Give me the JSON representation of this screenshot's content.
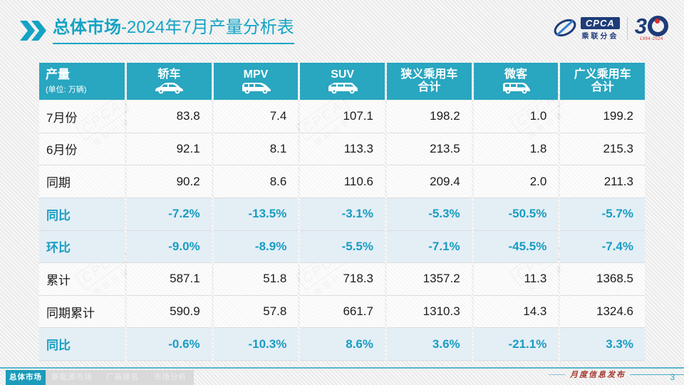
{
  "title": {
    "prefix": "总体市场",
    "suffix": "-2024年7月产量分析表"
  },
  "logos": {
    "cpca_acronym": "CPCA",
    "cpca_name": "乘联分会",
    "anniversary_number_left": "3",
    "anniversary_years": "1994-2024"
  },
  "watermark": {
    "line1": "CPCA",
    "line2": "乘联分会"
  },
  "table": {
    "first_header": {
      "title": "产量",
      "subtitle": "(单位: 万辆)"
    },
    "columns": [
      {
        "label": "轿车",
        "icon": "sedan-icon"
      },
      {
        "label": "MPV",
        "icon": "mpv-icon"
      },
      {
        "label": "SUV",
        "icon": "suv-icon"
      },
      {
        "label": "狭义乘用车\n合计",
        "icon": null
      },
      {
        "label": "微客",
        "icon": "minivan-icon"
      },
      {
        "label": "广义乘用车\n合计",
        "icon": null
      }
    ],
    "rows": [
      {
        "label": "7月份",
        "highlight": false,
        "values": [
          "83.8",
          "7.4",
          "107.1",
          "198.2",
          "1.0",
          "199.2"
        ]
      },
      {
        "label": "6月份",
        "highlight": false,
        "values": [
          "92.1",
          "8.1",
          "113.3",
          "213.5",
          "1.8",
          "215.3"
        ]
      },
      {
        "label": "同期",
        "highlight": false,
        "values": [
          "90.2",
          "8.6",
          "110.6",
          "209.4",
          "2.0",
          "211.3"
        ]
      },
      {
        "label": "同比",
        "highlight": true,
        "values": [
          "-7.2%",
          "-13.5%",
          "-3.1%",
          "-5.3%",
          "-50.5%",
          "-5.7%"
        ]
      },
      {
        "label": "环比",
        "highlight": true,
        "values": [
          "-9.0%",
          "-8.9%",
          "-5.5%",
          "-7.1%",
          "-45.5%",
          "-7.4%"
        ]
      },
      {
        "label": "累计",
        "highlight": false,
        "values": [
          "587.1",
          "51.8",
          "718.3",
          "1357.2",
          "11.3",
          "1368.5"
        ]
      },
      {
        "label": "同期累计",
        "highlight": false,
        "values": [
          "590.9",
          "57.8",
          "661.7",
          "1310.3",
          "14.3",
          "1324.6"
        ]
      },
      {
        "label": "同比",
        "highlight": true,
        "values": [
          "-0.6%",
          "-10.3%",
          "8.6%",
          "3.6%",
          "-21.1%",
          "3.3%"
        ]
      }
    ]
  },
  "chart_data": {
    "type": "table",
    "title": "总体市场-2024年7月产量分析表",
    "unit": "万辆",
    "columns": [
      "产量",
      "轿车",
      "MPV",
      "SUV",
      "狭义乘用车合计",
      "微客",
      "广义乘用车合计"
    ],
    "rows": [
      [
        "7月份",
        83.8,
        7.4,
        107.1,
        198.2,
        1.0,
        199.2
      ],
      [
        "6月份",
        92.1,
        8.1,
        113.3,
        213.5,
        1.8,
        215.3
      ],
      [
        "同期",
        90.2,
        8.6,
        110.6,
        209.4,
        2.0,
        211.3
      ],
      [
        "同比",
        "-7.2%",
        "-13.5%",
        "-3.1%",
        "-5.3%",
        "-50.5%",
        "-5.7%"
      ],
      [
        "环比",
        "-9.0%",
        "-8.9%",
        "-5.5%",
        "-7.1%",
        "-45.5%",
        "-7.4%"
      ],
      [
        "累计",
        587.1,
        51.8,
        718.3,
        1357.2,
        11.3,
        1368.5
      ],
      [
        "同期累计",
        590.9,
        57.8,
        661.7,
        1310.3,
        14.3,
        1324.6
      ],
      [
        "同比",
        "-0.6%",
        "-10.3%",
        "8.6%",
        "3.6%",
        "-21.1%",
        "3.3%"
      ]
    ]
  },
  "footer": {
    "tabs": [
      {
        "label": "总体市场",
        "active": true
      },
      {
        "label": "新能源市场",
        "active": false
      },
      {
        "label": "厂商排名",
        "active": false
      },
      {
        "label": "市场分析",
        "active": false
      }
    ],
    "caption": "月度信息发布",
    "page_number": "3"
  },
  "colors": {
    "accent_teal": "#14a3c5",
    "header_bg": "#29a6c0",
    "highlight_row_bg": "#e4eef5",
    "highlight_text": "#189dc2",
    "logo_navy": "#1e3c78",
    "anniversary_red": "#d9302c",
    "caption_red": "#a5382f"
  }
}
